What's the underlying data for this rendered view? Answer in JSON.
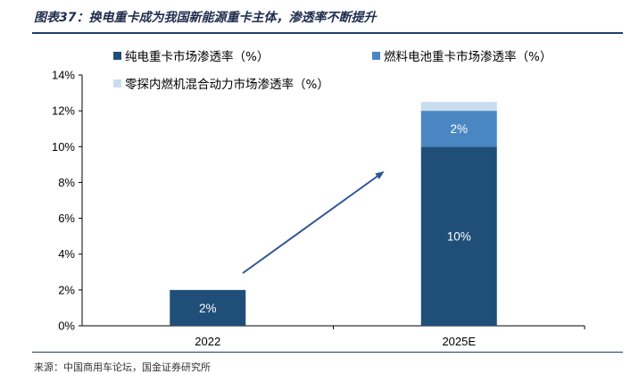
{
  "title": "图表37：换电重卡成为我国新能源重卡主体，渗透率不断提升",
  "source": "来源：中国商用车论坛，国金证券研究所",
  "chart_data": {
    "type": "bar",
    "stacked": true,
    "categories": [
      "2022",
      "2025E"
    ],
    "series": [
      {
        "name": "纯电重卡市场渗透率（%）",
        "values": [
          2,
          10
        ],
        "labels": [
          "2%",
          "10%"
        ],
        "color": "#1f4e79"
      },
      {
        "name": "燃料电池重卡市场渗透率（%）",
        "values": [
          0,
          2
        ],
        "labels": [
          "",
          "2%"
        ],
        "color": "#4a87c2"
      },
      {
        "name": "零探内燃机混合动力市场渗透率（%）",
        "values": [
          0,
          0.5
        ],
        "labels": [
          "",
          ""
        ],
        "color": "#c9ddf0"
      }
    ],
    "yticks": [
      "0%",
      "2%",
      "4%",
      "6%",
      "8%",
      "10%",
      "12%",
      "14%"
    ],
    "ylim": [
      0,
      14
    ],
    "legend": "top",
    "grid": false,
    "annotation": "upward trend arrow from 2022 to 2025E"
  }
}
